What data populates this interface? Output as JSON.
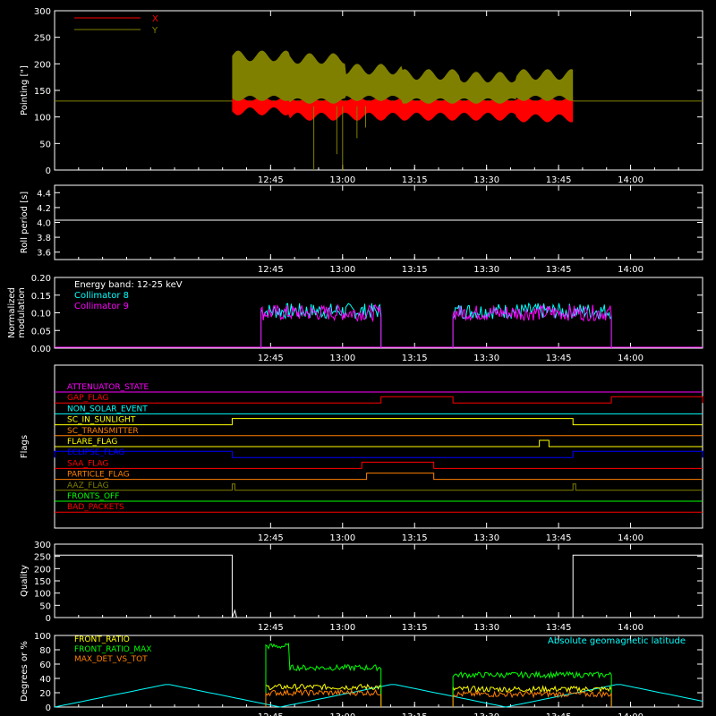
{
  "chart_data": [
    {
      "type": "line",
      "ylabel": "Pointing [\"]",
      "ylim": [
        0,
        300
      ],
      "yticks": [
        "0",
        "50",
        "100",
        "150",
        "200",
        "250",
        "300"
      ],
      "xticks": [
        "12:45",
        "13:00",
        "13:15",
        "13:30",
        "13:45",
        "14:00"
      ],
      "legend": [
        "X",
        "Y"
      ],
      "series": [
        {
          "name": "X",
          "color": "#ff0000",
          "baseline": 130,
          "active_range": [
            "12:37",
            "13:48"
          ],
          "envelope": [
            [
              118,
              175
            ],
            [
              108,
              150
            ],
            [
              108,
              145
            ],
            [
              108,
              135
            ],
            [
              108,
              132
            ],
            [
              105,
              130
            ]
          ]
        },
        {
          "name": "Y",
          "color": "#808000",
          "baseline": 130,
          "active_range": [
            "12:37",
            "13:48"
          ],
          "envelope": [
            [
              140,
              225
            ],
            [
              135,
              220
            ],
            [
              140,
              200
            ],
            [
              135,
              190
            ],
            [
              135,
              185
            ],
            [
              140,
              190
            ]
          ]
        }
      ]
    },
    {
      "type": "line",
      "ylabel": "Roll period [s]",
      "ylim": [
        3.5,
        4.5
      ],
      "yticks": [
        "3.6",
        "3.8",
        "4.0",
        "4.2",
        "4.4"
      ],
      "xticks": [
        "12:45",
        "13:00",
        "13:15",
        "13:30",
        "13:45",
        "14:00"
      ],
      "series": [
        {
          "name": "",
          "color": "#ffffff",
          "values_const": 4.03
        }
      ]
    },
    {
      "type": "line",
      "ylabel": "Normalized modulation",
      "ylim": [
        0,
        0.2
      ],
      "yticks": [
        "0.00",
        "0.05",
        "0.10",
        "0.15",
        "0.20"
      ],
      "xticks": [
        "12:45",
        "13:00",
        "13:15",
        "13:30",
        "13:45",
        "14:00"
      ],
      "annotation": "Energy band: 12-25 keV",
      "legend": [
        "Collimator 8",
        "Collimator 9"
      ],
      "series": [
        {
          "name": "Collimator 8",
          "color": "#00ffff",
          "segments": [
            [
              "12:43",
              "13:08"
            ],
            [
              "13:23",
              "13:56"
            ]
          ],
          "level": 0.105
        },
        {
          "name": "Collimator 9",
          "color": "#ff00ff",
          "segments": [
            [
              "12:43",
              "13:08"
            ],
            [
              "13:23",
              "13:56"
            ]
          ],
          "level": 0.1
        }
      ]
    },
    {
      "type": "flags",
      "ylabel": "Flags",
      "xticks": [
        "12:45",
        "13:00",
        "13:15",
        "13:30",
        "13:45",
        "14:00"
      ],
      "flags": [
        {
          "name": "ATTENUATOR_STATE",
          "color": "#ff00ff",
          "on": []
        },
        {
          "name": "GAP_FLAG",
          "color": "#ff0000",
          "on": [
            [
              "13:08",
              "13:23"
            ],
            [
              "13:56",
              "14:15"
            ]
          ]
        },
        {
          "name": "NON_SOLAR_EVENT",
          "color": "#00ffff",
          "on": []
        },
        {
          "name": "SC_IN_SUNLIGHT",
          "color": "#ffff00",
          "on": [
            [
              "12:37",
              "13:48"
            ]
          ]
        },
        {
          "name": "SC_TRANSMITTER",
          "color": "#ff8000",
          "on": []
        },
        {
          "name": "FLARE_FLAG",
          "color": "#ffff00",
          "on": [
            [
              "13:41",
              "13:43"
            ]
          ]
        },
        {
          "name": "ECLIPSE_FLAG",
          "color": "#0000ff",
          "on": [
            [
              "12:00",
              "12:37"
            ],
            [
              "13:48",
              "14:15"
            ]
          ]
        },
        {
          "name": "SAA_FLAG",
          "color": "#ff0000",
          "on": [
            [
              "13:04",
              "13:19"
            ]
          ]
        },
        {
          "name": "PARTICLE_FLAG",
          "color": "#ff8000",
          "on": [
            [
              "13:05",
              "13:19"
            ]
          ]
        },
        {
          "name": "AAZ_FLAG",
          "color": "#808000",
          "on": [
            [
              "12:37",
              "12:37.5"
            ],
            [
              "13:48",
              "13:48.5"
            ]
          ]
        },
        {
          "name": "FRONTS_OFF",
          "color": "#00ff00",
          "on": []
        },
        {
          "name": "BAD_PACKETS",
          "color": "#ff0000",
          "on": []
        }
      ]
    },
    {
      "type": "line",
      "ylabel": "Quality",
      "ylim": [
        0,
        300
      ],
      "yticks": [
        "0",
        "50",
        "100",
        "150",
        "200",
        "250",
        "300"
      ],
      "xticks": [
        "12:45",
        "13:00",
        "13:15",
        "13:30",
        "13:45",
        "14:00"
      ],
      "series": [
        {
          "name": "",
          "color": "#ffffff",
          "high": 255,
          "high_ranges": [
            [
              "12:00",
              "12:37"
            ],
            [
              "13:48",
              "14:15"
            ]
          ]
        }
      ]
    },
    {
      "type": "line",
      "ylabel": "Degrees or %",
      "ylim": [
        0,
        100
      ],
      "yticks": [
        "0",
        "20",
        "40",
        "60",
        "80",
        "100"
      ],
      "xticks": [
        "12:45",
        "13:00",
        "13:15",
        "13:30",
        "13:45",
        "14:00"
      ],
      "legend": [
        "FRONT_RATIO",
        "FRONT_RATIO_MAX",
        "MAX_DET_VS_TOT"
      ],
      "right_label": "Absolute geomagnetic latitude",
      "series": [
        {
          "name": "FRONT_RATIO",
          "color": "#ffff00"
        },
        {
          "name": "FRONT_RATIO_MAX",
          "color": "#00ff00"
        },
        {
          "name": "MAX_DET_VS_TOT",
          "color": "#ff8000"
        },
        {
          "name": "Absolute geomagnetic latitude",
          "color": "#00ffff"
        }
      ]
    }
  ],
  "colors": {
    "axes": "#ffffff",
    "background": "#000000"
  }
}
